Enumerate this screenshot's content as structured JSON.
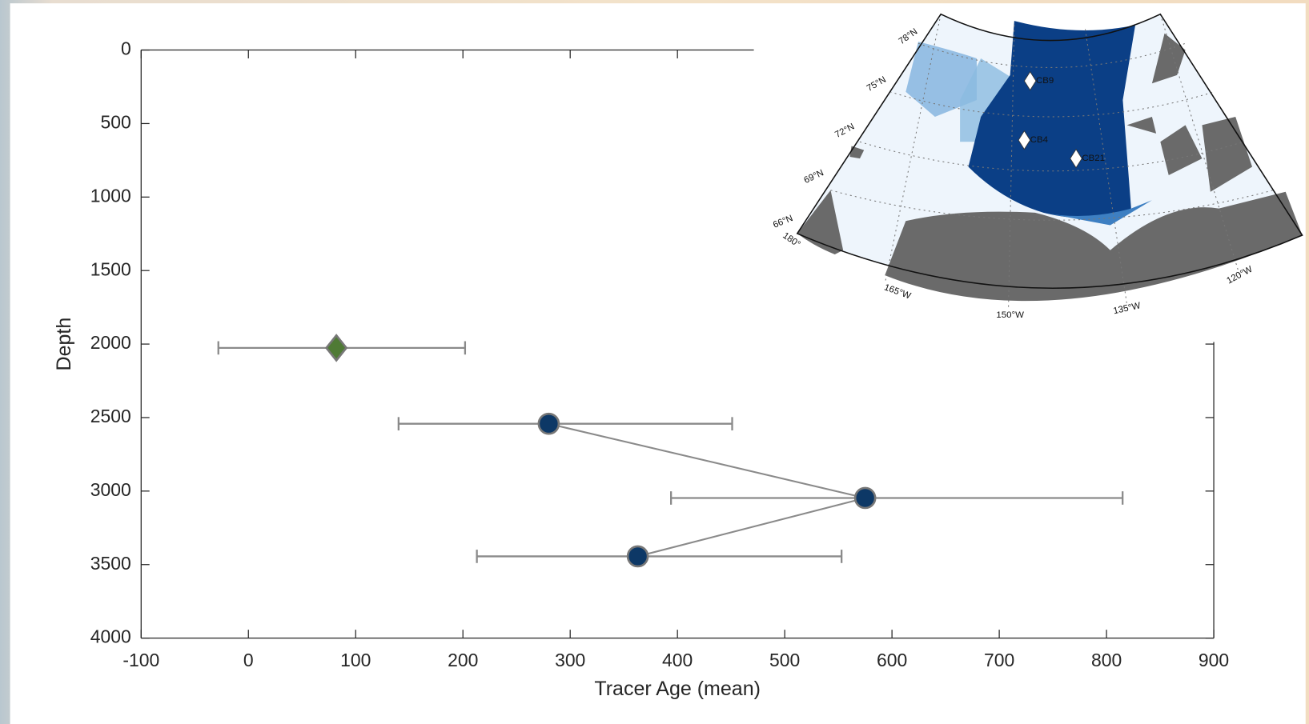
{
  "chart_data": {
    "type": "errorbar-scatter",
    "xlabel": "Tracer Age (mean)",
    "ylabel": "Depth",
    "xlim": [
      -100,
      900
    ],
    "xticks": [
      -100,
      0,
      100,
      200,
      300,
      400,
      500,
      600,
      700,
      800,
      900
    ],
    "ylim": [
      0,
      4000
    ],
    "yticks": [
      0,
      500,
      1000,
      1500,
      2000,
      2500,
      3000,
      3500,
      4000
    ],
    "y_reversed": true,
    "grid": false,
    "series": [
      {
        "color": "#4f7a35",
        "marker": "diamond",
        "line": false,
        "x": [
          82
        ],
        "y": [
          2026
        ],
        "xerr_minus": [
          110
        ],
        "xerr_plus": [
          120
        ]
      },
      {
        "color": "#0d3866",
        "marker": "circle",
        "line": true,
        "x": [
          280,
          575,
          363
        ],
        "y": [
          2542,
          3047,
          3444
        ],
        "xerr_minus": [
          140,
          181,
          150
        ],
        "xerr_plus": [
          171,
          240,
          190
        ]
      }
    ]
  },
  "inset_map": {
    "lat_labels": [
      "78°N",
      "75°N",
      "72°N",
      "69°N",
      "66°N"
    ],
    "lon_labels": [
      "180°",
      "165°W",
      "150°W",
      "135°W",
      "120°W"
    ],
    "stations": [
      "CB9",
      "CB4",
      "CB21"
    ]
  }
}
